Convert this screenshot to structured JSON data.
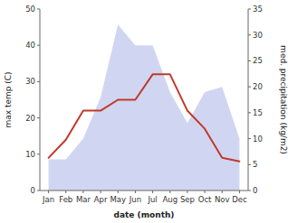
{
  "chart_data": {
    "type": "line",
    "x_label": "date (month)",
    "y_label": "max temp (C)",
    "y2_label": "med. precipitation (kg/m2)",
    "categories": [
      "Jan",
      "Feb",
      "Mar",
      "Apr",
      "May",
      "Jun",
      "Jul",
      "Aug",
      "Sep",
      "Oct",
      "Nov",
      "Dec"
    ],
    "series": [
      {
        "type": "area",
        "axis": "y2",
        "color": "#aab4e8",
        "values": [
          6,
          6,
          10,
          18,
          32,
          28,
          28,
          19,
          13,
          19,
          20,
          10
        ]
      },
      {
        "type": "line",
        "color": "#c0392b",
        "values": [
          9,
          14,
          22,
          22,
          25,
          25,
          32,
          32,
          22,
          17,
          9,
          8
        ]
      }
    ],
    "ylim": [
      0,
      50
    ],
    "yticks": [
      0,
      10,
      20,
      30,
      40,
      50
    ],
    "y2lim": [
      0,
      35
    ],
    "y2ticks": [
      0,
      5,
      10,
      15,
      20,
      25,
      30,
      35
    ],
    "grid": false
  }
}
